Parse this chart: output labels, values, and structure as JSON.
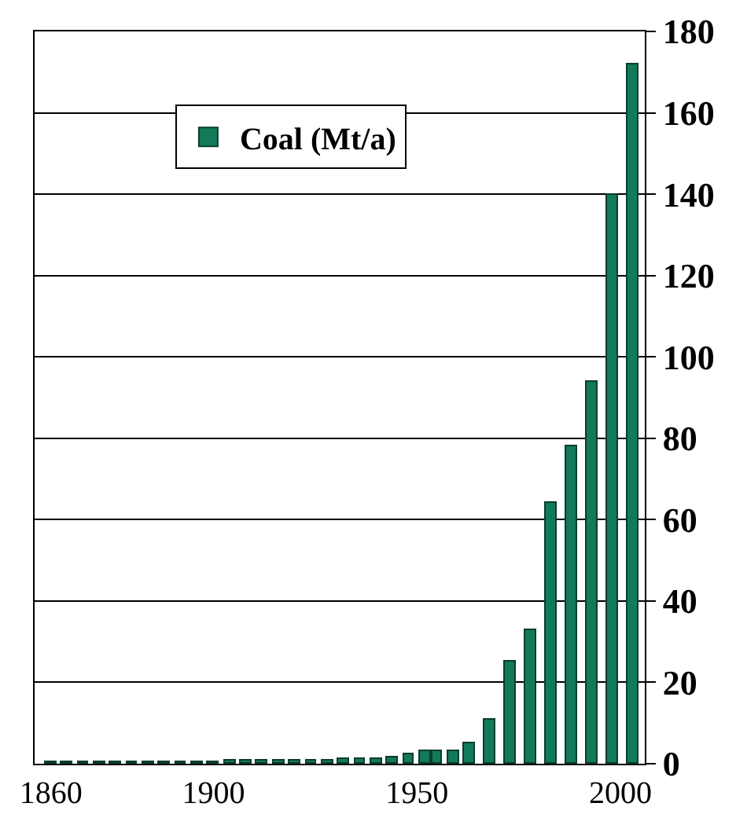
{
  "chart_data": {
    "type": "bar",
    "x": [
      1860,
      1864,
      1868,
      1872,
      1876,
      1880,
      1884,
      1888,
      1892,
      1896,
      1900,
      1904,
      1908,
      1912,
      1916,
      1920,
      1924,
      1928,
      1932,
      1936,
      1940,
      1944,
      1948,
      1952,
      1955,
      1959,
      1963,
      1968,
      1973,
      1978,
      1983,
      1988,
      1993,
      1998,
      2003
    ],
    "series": [
      {
        "name": "Coal (Mt/a)",
        "color": "#127a5a",
        "values": [
          0.3,
          0.3,
          0.3,
          0.3,
          0.3,
          0.3,
          0.3,
          0.3,
          0.3,
          0.3,
          0.3,
          0.8,
          0.8,
          0.8,
          0.8,
          0.8,
          0.8,
          0.8,
          1,
          1,
          1,
          1.5,
          2.5,
          3,
          3,
          3,
          5,
          11,
          25,
          33,
          64,
          78,
          94,
          140,
          172
        ]
      }
    ],
    "xlim": [
      1856,
      2006
    ],
    "xticks": [
      1860,
      1900,
      1950,
      2000
    ],
    "ylim": [
      0,
      180
    ],
    "yticks": [
      0,
      20,
      40,
      60,
      80,
      100,
      120,
      140,
      160,
      180
    ],
    "grid": "y",
    "legend": "top"
  }
}
